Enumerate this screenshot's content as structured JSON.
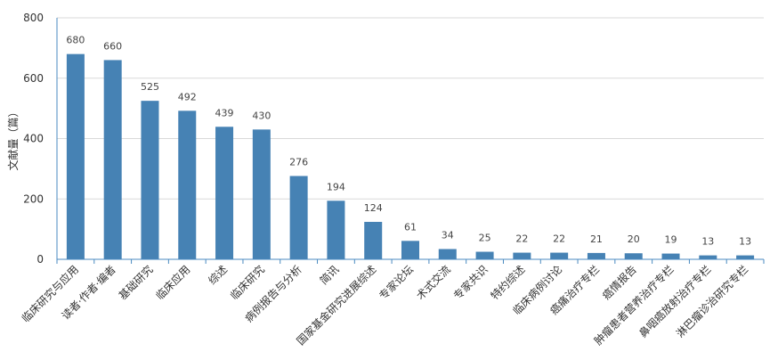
{
  "chart_data": {
    "type": "bar",
    "ylabel": "文献量（篇）",
    "ylim": [
      0,
      800
    ],
    "yticks": [
      0,
      200,
      400,
      600,
      800
    ],
    "grid": true,
    "bar_color": "#4682b4",
    "categories": [
      "临床研究与应用",
      "读者·作者·编者",
      "基础研究",
      "临床应用",
      "综述",
      "临床研究",
      "病例报告与分析",
      "简讯",
      "国家基金研究进展综述",
      "专家论坛",
      "术式交流",
      "专家共识",
      "特约综述",
      "临床病例讨论",
      "癌痛治疗专栏",
      "癌情报告",
      "肿瘤患者营养治疗专栏",
      "鼻咽癌放射治疗专栏",
      "淋巴瘤诊治研究专栏"
    ],
    "values": [
      680,
      660,
      525,
      492,
      439,
      430,
      276,
      194,
      124,
      61,
      34,
      25,
      22,
      22,
      21,
      20,
      19,
      13,
      13
    ]
  }
}
